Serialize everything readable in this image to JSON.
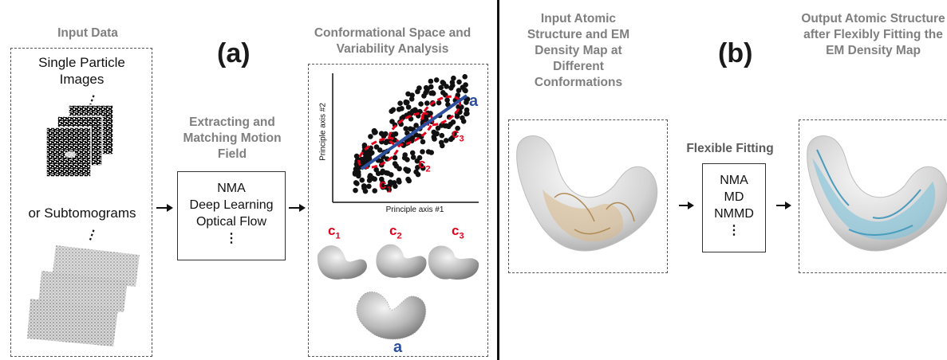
{
  "panel_a": {
    "letter": "(a)",
    "input_header": "Input Data",
    "single_particle": "Single Particle Images",
    "or_subtomograms": "or Subtomograms",
    "ellipsis": "⋮",
    "extract_header": "Extracting and Matching Motion Field",
    "methods": [
      "NMA",
      "Deep Learning",
      "Optical Flow",
      "⋮"
    ],
    "conf_header": "Conformational Space and Variability Analysis",
    "plot": {
      "xlabel": "Principle axis #1",
      "ylabel": "Principle axis #2",
      "axis_label": "a",
      "clusters": [
        "c1",
        "c2",
        "c3"
      ]
    },
    "bottom_label": "a"
  },
  "panel_b": {
    "letter": "(b)",
    "input_header": "Input Atomic Structure and EM Density Map at Different Conformations",
    "fitting_header": "Flexible Fitting",
    "methods": [
      "NMA",
      "MD",
      "NMMD",
      "⋮"
    ],
    "output_header": "Output Atomic Structure after Flexibly Fitting the EM Density Map"
  },
  "colors": {
    "header_gray": "#7f7f7f",
    "cluster_red": "#e3001b",
    "axis_blue": "#2c4f9e",
    "fit_blue": "#7ec3dc",
    "fit_tan": "#d9b98a"
  }
}
